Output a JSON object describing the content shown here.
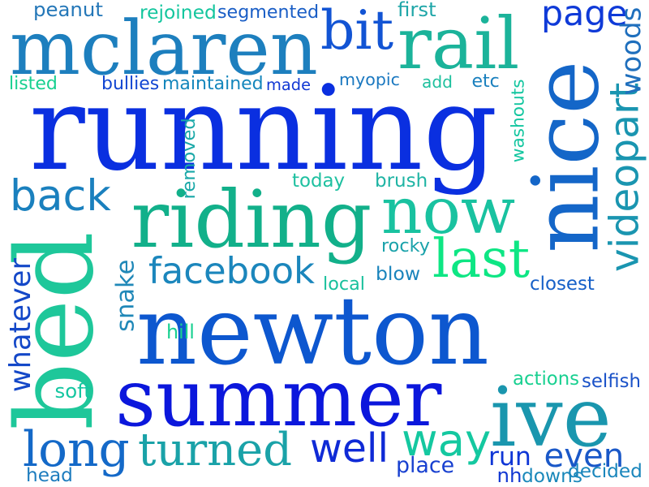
{
  "words": [
    {
      "text": "running",
      "color": "#0a2fe0"
    },
    {
      "text": "newton",
      "color": "#0d57cf"
    },
    {
      "text": "summer",
      "color": "#0b17dc"
    },
    {
      "text": "nice",
      "color": "#1466c8"
    },
    {
      "text": "mclaren",
      "color": "#1d7fbe"
    },
    {
      "text": "riding",
      "color": "#12b08a"
    },
    {
      "text": "rail",
      "color": "#1bb39a"
    },
    {
      "text": "bit",
      "color": "#1254d4"
    },
    {
      "text": "bed",
      "color": "#1ec79a"
    },
    {
      "text": "ive",
      "color": "#1a96ae"
    },
    {
      "text": "now",
      "color": "#19c2a0"
    },
    {
      "text": "last",
      "color": "#0ee684"
    },
    {
      "text": "back",
      "color": "#1a80be"
    },
    {
      "text": "facebook",
      "color": "#1b86bc"
    },
    {
      "text": "long",
      "color": "#1469c8"
    },
    {
      "text": "turned",
      "color": "#1aa2a8"
    },
    {
      "text": "well",
      "color": "#0f2ad6"
    },
    {
      "text": "way",
      "color": "#14c8a0"
    },
    {
      "text": "videopart",
      "color": "#1a95b0"
    },
    {
      "text": "page",
      "color": "#0f3ad8"
    },
    {
      "text": "woods",
      "color": "#1f6fbd"
    },
    {
      "text": "whatever",
      "color": "#1448c8"
    },
    {
      "text": "snake",
      "color": "#2088b8"
    },
    {
      "text": "run",
      "color": "#0f36d6"
    },
    {
      "text": "even",
      "color": "#1a58c8"
    },
    {
      "text": "place",
      "color": "#1840d0"
    },
    {
      "text": "peanut",
      "color": "#2477b8"
    },
    {
      "text": "rejoined",
      "color": "#14c69e"
    },
    {
      "text": "segmented",
      "color": "#1a5ec6"
    },
    {
      "text": "first",
      "color": "#1fa6a8"
    },
    {
      "text": "listed",
      "color": "#18d090"
    },
    {
      "text": "bullies",
      "color": "#1246d2"
    },
    {
      "text": "maintained",
      "color": "#1486bc"
    },
    {
      "text": "made",
      "color": "#1238d4"
    },
    {
      "text": "myopic",
      "color": "#1a78c0"
    },
    {
      "text": "add",
      "color": "#1ec09e"
    },
    {
      "text": "etc",
      "color": "#1a80be"
    },
    {
      "text": "washouts",
      "color": "#14c6a0"
    },
    {
      "text": "removed",
      "color": "#1aa8a8"
    },
    {
      "text": "today",
      "color": "#1ec0a0"
    },
    {
      "text": "brush",
      "color": "#1fb4a4"
    },
    {
      "text": "rocky",
      "color": "#1aa2aa"
    },
    {
      "text": "blow",
      "color": "#1a84bc"
    },
    {
      "text": "local",
      "color": "#18c09c"
    },
    {
      "text": "closest",
      "color": "#1660c8"
    },
    {
      "text": "hill",
      "color": "#18d090"
    },
    {
      "text": "soft",
      "color": "#14c6a0"
    },
    {
      "text": "actions",
      "color": "#18d090"
    },
    {
      "text": "selfish",
      "color": "#1a52c8"
    },
    {
      "text": "head",
      "color": "#1d7cbe"
    },
    {
      "text": "nh",
      "color": "#1238d2"
    },
    {
      "text": "downs",
      "color": "#1a88ba"
    },
    {
      "text": "decided",
      "color": "#1a86bc"
    }
  ]
}
